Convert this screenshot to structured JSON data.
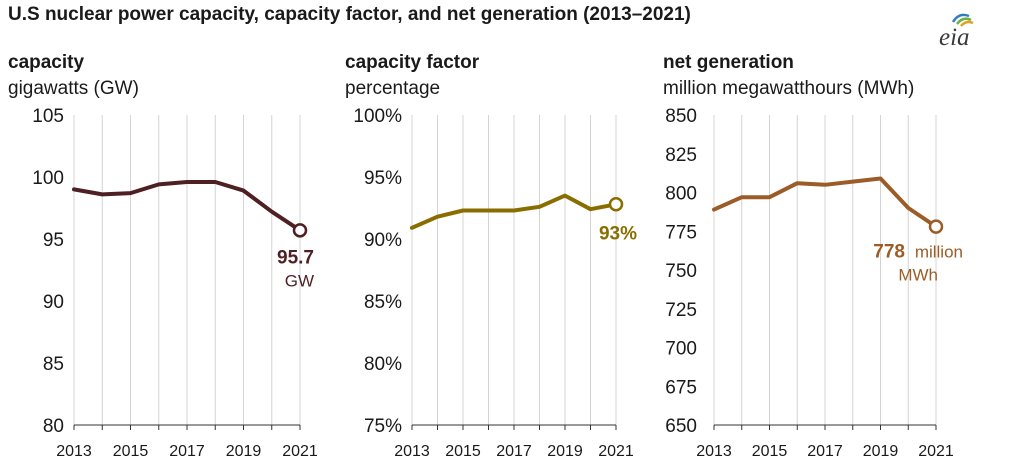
{
  "title": "U.S nuclear power capacity, capacity factor, and net generation (2013–2021)",
  "logo_text": "eia",
  "colors": {
    "capacity": "#4e1f23",
    "capacity_factor": "#8a6d00",
    "net_generation": "#9b5c27",
    "grid": "#d4d4d4",
    "text": "#1a1a1a"
  },
  "chart_data": [
    {
      "type": "line",
      "title": "capacity",
      "ylabel": "gigawatts (GW)",
      "x": [
        2013,
        2014,
        2015,
        2016,
        2017,
        2018,
        2019,
        2020,
        2021
      ],
      "x_ticks": [
        "2013",
        "2015",
        "2017",
        "2019",
        "2021"
      ],
      "y_ticks": [
        "105",
        "100",
        "95",
        "90",
        "85",
        "80"
      ],
      "ylim": [
        80,
        105
      ],
      "series": [
        {
          "values": [
            99.0,
            98.6,
            98.7,
            99.4,
            99.6,
            99.6,
            98.9,
            97.2,
            95.7
          ]
        }
      ],
      "annotation": {
        "value": "95.7",
        "unit": "GW"
      },
      "grid": "vertical"
    },
    {
      "type": "line",
      "title": "capacity factor",
      "ylabel": "percentage",
      "x": [
        2013,
        2014,
        2015,
        2016,
        2017,
        2018,
        2019,
        2020,
        2021
      ],
      "x_ticks": [
        "2013",
        "2015",
        "2017",
        "2019",
        "2021"
      ],
      "y_ticks": [
        "100%",
        "95%",
        "90%",
        "85%",
        "80%",
        "75%"
      ],
      "ylim": [
        75,
        100
      ],
      "series": [
        {
          "values": [
            90.9,
            91.8,
            92.3,
            92.3,
            92.3,
            92.6,
            93.5,
            92.4,
            92.8
          ]
        }
      ],
      "annotation": {
        "value": "93%",
        "unit": ""
      },
      "grid": "vertical"
    },
    {
      "type": "line",
      "title": "net generation",
      "ylabel": "million megawatthours (MWh)",
      "x": [
        2013,
        2014,
        2015,
        2016,
        2017,
        2018,
        2019,
        2020,
        2021
      ],
      "x_ticks": [
        "2013",
        "2015",
        "2017",
        "2019",
        "2021"
      ],
      "y_ticks": [
        "850",
        "825",
        "800",
        "775",
        "750",
        "725",
        "700",
        "675",
        "650"
      ],
      "ylim": [
        650,
        850
      ],
      "series": [
        {
          "values": [
            789,
            797,
            797,
            806,
            805,
            807,
            809,
            790,
            778
          ]
        }
      ],
      "annotation": {
        "value": "778",
        "unit_line1": "million",
        "unit_line2": "MWh"
      },
      "grid": "vertical"
    }
  ]
}
